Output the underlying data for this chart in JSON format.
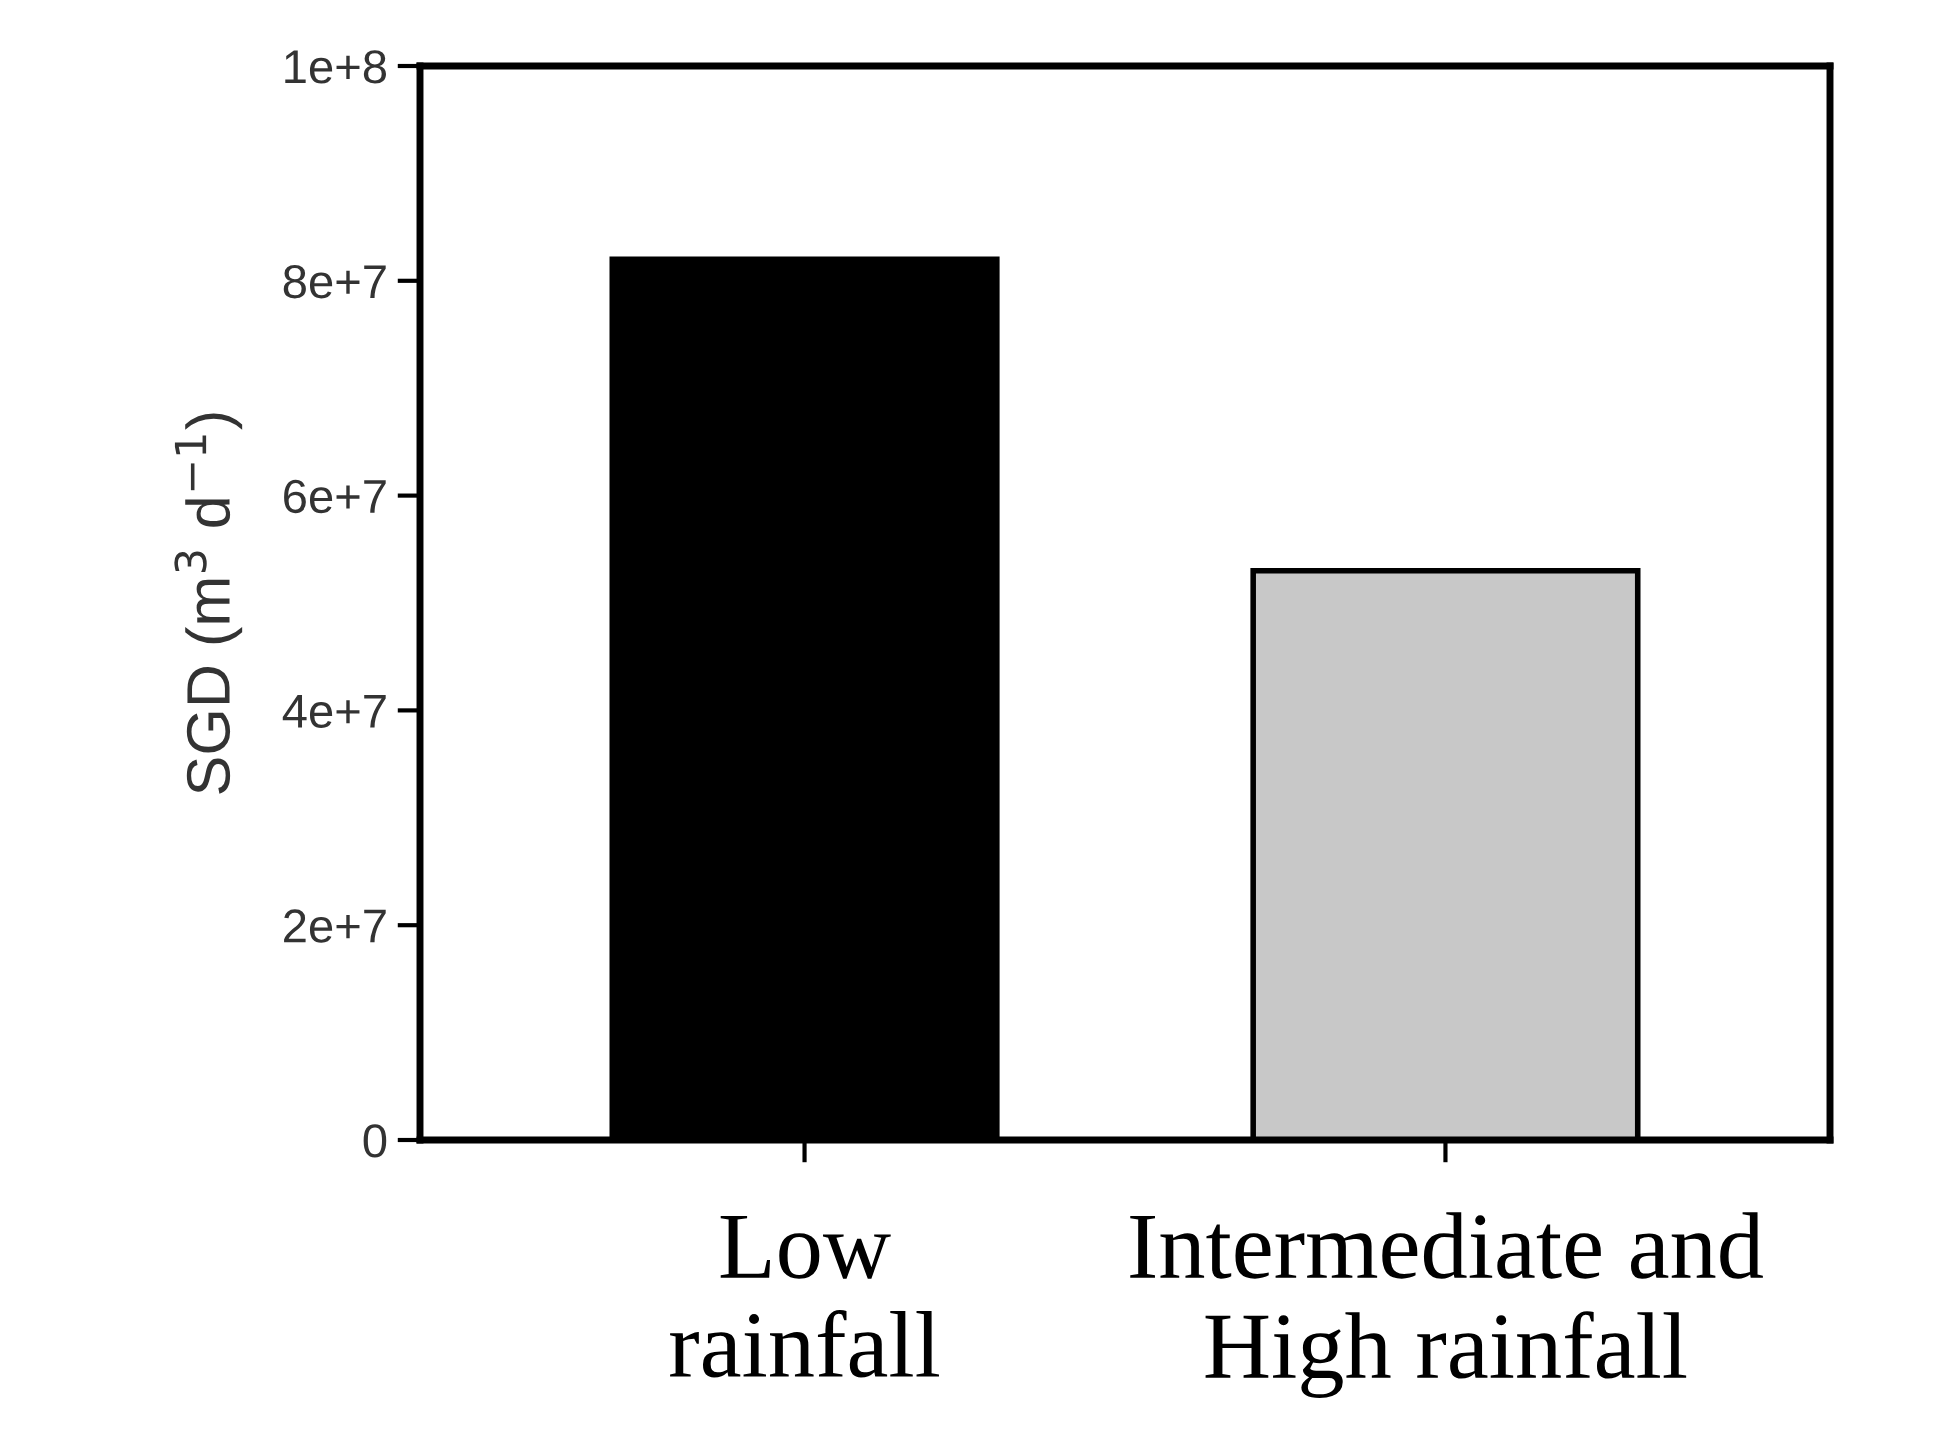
{
  "chart_data": {
    "type": "bar",
    "ylabel": "SGD (m$^{3}$ d$^{−1}$)",
    "categories": [
      "Low\nrainfall",
      "Intermediate and\nHigh rainfall"
    ],
    "values": [
      82000000.0,
      53000000.0
    ],
    "colors": [
      "#000000",
      "#c8c8c8"
    ],
    "ylim": [
      0,
      100000000.0
    ],
    "yticks": [
      {
        "value": 0,
        "label": "0"
      },
      {
        "value": 20000000.0,
        "label": "2e+7"
      },
      {
        "value": 40000000.0,
        "label": "4e+7"
      },
      {
        "value": 60000000.0,
        "label": "6e+7"
      },
      {
        "value": 80000000.0,
        "label": "8e+7"
      },
      {
        "value": 100000000.0,
        "label": "1e+8"
      }
    ],
    "grid": false,
    "legend": false
  }
}
